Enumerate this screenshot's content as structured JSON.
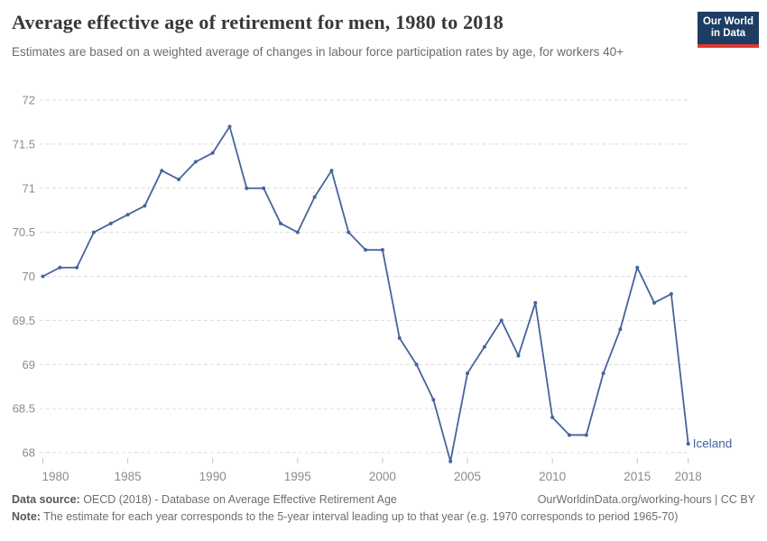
{
  "header": {
    "title": "Average effective age of retirement for men, 1980 to 2018",
    "subtitle": "Estimates are based on a weighted average of changes in labour force participation rates by age, for workers 40+",
    "logo": {
      "line1": "Our World",
      "line2": "in Data",
      "bg_color": "#1d3d63",
      "accent_color": "#dc3a34"
    }
  },
  "chart_data": {
    "type": "line",
    "title": "Average effective age of retirement for men, 1980 to 2018",
    "subtitle": "Estimates are based on a weighted average of changes in labour force participation rates by age, for workers 40+",
    "xlabel": "",
    "ylabel": "",
    "xlim": [
      1980,
      2018
    ],
    "ylim": [
      68,
      72
    ],
    "grid": "horizontal-dashed",
    "legend_position": "end-of-line-label",
    "x_ticks": [
      1980,
      1985,
      1990,
      1995,
      2000,
      2005,
      2010,
      2015,
      2018
    ],
    "y_ticks": [
      68,
      68.5,
      69,
      69.5,
      70,
      70.5,
      71,
      71.5,
      72
    ],
    "x": [
      1980,
      1981,
      1982,
      1983,
      1984,
      1985,
      1986,
      1987,
      1988,
      1989,
      1990,
      1991,
      1992,
      1993,
      1994,
      1995,
      1996,
      1997,
      1998,
      1999,
      2000,
      2001,
      2002,
      2003,
      2004,
      2005,
      2006,
      2007,
      2008,
      2009,
      2010,
      2011,
      2012,
      2013,
      2014,
      2015,
      2016,
      2017,
      2018
    ],
    "series": [
      {
        "name": "Iceland",
        "color": "#46649B",
        "values": [
          70.0,
          70.1,
          70.1,
          70.5,
          70.6,
          70.7,
          70.8,
          71.2,
          71.1,
          71.3,
          71.4,
          71.7,
          71.0,
          71.0,
          70.6,
          70.5,
          70.9,
          71.2,
          70.5,
          70.3,
          70.3,
          69.3,
          69.0,
          68.6,
          67.9,
          68.9,
          69.2,
          69.5,
          69.1,
          69.7,
          68.4,
          68.2,
          68.2,
          68.9,
          69.4,
          70.1,
          69.7,
          69.8,
          68.1
        ]
      }
    ],
    "axis_color": "#8b8b8b"
  },
  "footer": {
    "datasource_label": "Data source:",
    "datasource_text": " OECD (2018) - Database on Average Effective Retirement Age",
    "link_text": "OurWorldinData.org/working-hours | CC BY",
    "note_label": "Note:",
    "note_text": " The estimate for each year corresponds to the 5-year interval leading up to that year (e.g. 1970 corresponds to period 1965-70)"
  }
}
